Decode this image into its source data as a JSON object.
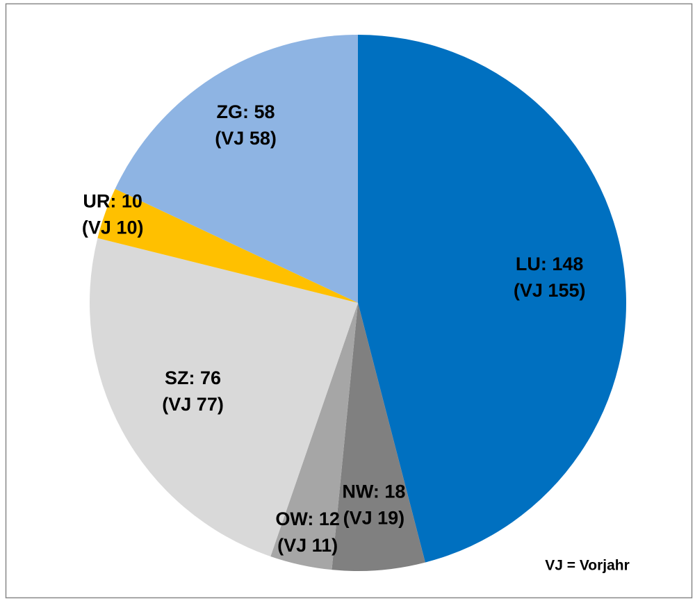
{
  "chart_data": {
    "type": "pie",
    "categories": [
      "LU",
      "NW",
      "OW",
      "SZ",
      "UR",
      "ZG"
    ],
    "values": [
      148,
      18,
      12,
      76,
      10,
      58
    ],
    "value_labels": [
      "LU: 148",
      "NW: 18",
      "OW: 12",
      "SZ: 76",
      "UR: 10",
      "ZG: 58"
    ],
    "previous_year_labels": [
      "(VJ 155)",
      "(VJ 19)",
      "(VJ 11)",
      "(VJ 77)",
      "(VJ 10)",
      "(VJ 58)"
    ],
    "colors": [
      "#0070c0",
      "#808080",
      "#a6a6a6",
      "#d9d9d9",
      "#ffc000",
      "#8eb4e3"
    ],
    "annotation": "VJ = Vorjahr"
  }
}
